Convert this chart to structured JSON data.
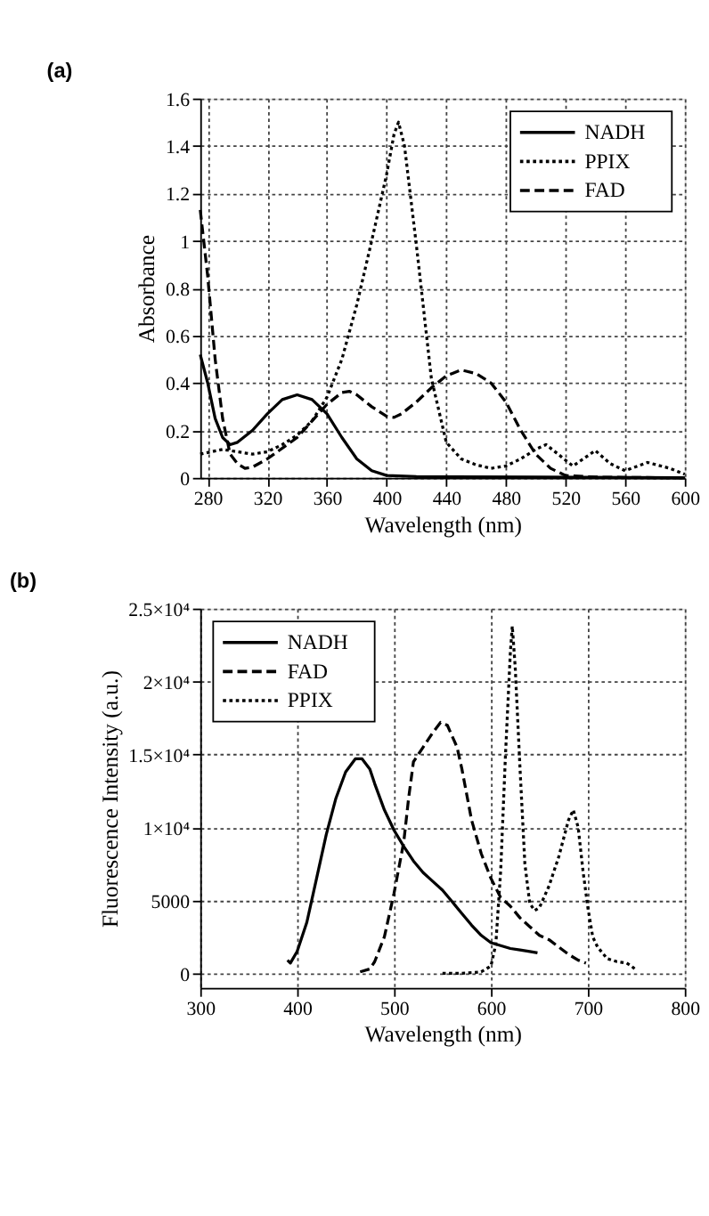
{
  "chart_data": [
    {
      "type": "line",
      "title": "(a)",
      "xlabel": "Wavelength (nm)",
      "ylabel": "Absorbance",
      "xlim": [
        275,
        600
      ],
      "xticks": [
        280,
        320,
        360,
        400,
        440,
        480,
        520,
        560,
        600
      ],
      "ylim": [
        0,
        1.6
      ],
      "yticks": [
        0,
        0.2,
        0.4,
        0.6,
        0.8,
        1,
        1.2,
        1.4,
        1.6
      ],
      "grid": true,
      "legend": "top right",
      "marker": "none",
      "series": [
        {
          "name": "NADH",
          "color": "#000000",
          "line_style": "solid",
          "x": [
            275,
            280,
            285,
            290,
            295,
            300,
            310,
            320,
            330,
            340,
            350,
            360,
            370,
            380,
            390,
            400,
            420,
            500,
            600
          ],
          "values": [
            0.52,
            0.4,
            0.25,
            0.17,
            0.14,
            0.15,
            0.2,
            0.27,
            0.33,
            0.35,
            0.33,
            0.27,
            0.17,
            0.08,
            0.03,
            0.01,
            0.005,
            0.003,
            0
          ]
        },
        {
          "name": "PPIX",
          "color": "#000000",
          "line_style": "dotted",
          "x": [
            275,
            290,
            300,
            310,
            320,
            330,
            340,
            350,
            360,
            370,
            380,
            390,
            400,
            405,
            408,
            412,
            420,
            425,
            430,
            440,
            450,
            460,
            470,
            480,
            490,
            500,
            507,
            515,
            525,
            540,
            550,
            560,
            575,
            590,
            600
          ],
          "values": [
            0.1,
            0.12,
            0.11,
            0.1,
            0.11,
            0.14,
            0.18,
            0.24,
            0.34,
            0.5,
            0.73,
            1.0,
            1.28,
            1.45,
            1.5,
            1.4,
            0.98,
            0.7,
            0.42,
            0.15,
            0.08,
            0.055,
            0.04,
            0.05,
            0.08,
            0.12,
            0.14,
            0.1,
            0.05,
            0.115,
            0.06,
            0.03,
            0.065,
            0.04,
            0.015
          ]
        },
        {
          "name": "FAD",
          "color": "#000000",
          "line_style": "dashed",
          "x": [
            275,
            280,
            285,
            290,
            295,
            300,
            305,
            310,
            320,
            340,
            350,
            360,
            370,
            375,
            380,
            390,
            400,
            405,
            410,
            420,
            430,
            440,
            450,
            460,
            470,
            480,
            490,
            500,
            510,
            520,
            540,
            600
          ],
          "values": [
            1.13,
            0.85,
            0.5,
            0.25,
            0.1,
            0.06,
            0.04,
            0.045,
            0.08,
            0.17,
            0.24,
            0.31,
            0.36,
            0.365,
            0.35,
            0.3,
            0.26,
            0.255,
            0.27,
            0.32,
            0.38,
            0.43,
            0.455,
            0.44,
            0.4,
            0.32,
            0.2,
            0.1,
            0.04,
            0.01,
            0.003,
            0
          ]
        }
      ]
    },
    {
      "type": "line",
      "title": "(b)",
      "xlabel": "Wavelength (nm)",
      "ylabel": "Fluorescence Intensity (a.u.)",
      "xlim": [
        300,
        800
      ],
      "xticks": [
        300,
        400,
        500,
        600,
        700,
        800
      ],
      "ylim": [
        -1000,
        25000
      ],
      "yticks": [
        0,
        5000,
        {
          "value": 10000,
          "label": "1×10⁴"
        },
        {
          "value": 15000,
          "label": "1.5×10⁴"
        },
        {
          "value": 20000,
          "label": "2×10⁴"
        },
        {
          "value": 25000,
          "label": "2.5×10⁴"
        }
      ],
      "grid": true,
      "legend": "top left",
      "marker": "none",
      "series": [
        {
          "name": "NADH",
          "color": "#000000",
          "line_style": "solid",
          "x": [
            390,
            393,
            400,
            410,
            420,
            430,
            440,
            450,
            460,
            467,
            475,
            480,
            490,
            500,
            510,
            520,
            530,
            540,
            550,
            560,
            570,
            580,
            590,
            600,
            610,
            620,
            630,
            640,
            648
          ],
          "values": [
            900,
            700,
            1500,
            3500,
            6500,
            9500,
            12000,
            13800,
            14700,
            14700,
            14000,
            13000,
            11200,
            9800,
            8700,
            7700,
            6900,
            6300,
            5700,
            4900,
            4100,
            3300,
            2600,
            2100,
            1900,
            1700,
            1600,
            1500,
            1400
          ]
        },
        {
          "name": "FAD",
          "color": "#000000",
          "line_style": "dashed",
          "x": [
            465,
            475,
            480,
            490,
            500,
            510,
            515,
            520,
            530,
            540,
            548,
            555,
            565,
            570,
            580,
            590,
            600,
            610,
            620,
            630,
            640,
            650,
            660,
            670,
            680,
            690,
            698
          ],
          "values": [
            100,
            300,
            800,
            2500,
            5500,
            9000,
            12000,
            14500,
            15500,
            16500,
            17200,
            17000,
            15500,
            14000,
            10500,
            8200,
            6500,
            5200,
            4600,
            3800,
            3200,
            2600,
            2300,
            1800,
            1300,
            900,
            700
          ]
        },
        {
          "name": "PPIX",
          "color": "#000000",
          "line_style": "dotted",
          "x": [
            550,
            570,
            590,
            600,
            605,
            610,
            615,
            620,
            622,
            625,
            630,
            635,
            640,
            645,
            650,
            660,
            670,
            680,
            685,
            690,
            695,
            700,
            705,
            710,
            720,
            730,
            740,
            745,
            750
          ],
          "values": [
            0,
            0,
            100,
            500,
            2000,
            7000,
            15000,
            22000,
            23800,
            21000,
            14000,
            7500,
            4800,
            4300,
            4500,
            6000,
            8000,
            10500,
            11200,
            10000,
            7000,
            4500,
            2500,
            1800,
            1000,
            800,
            700,
            500,
            200
          ]
        }
      ]
    }
  ]
}
